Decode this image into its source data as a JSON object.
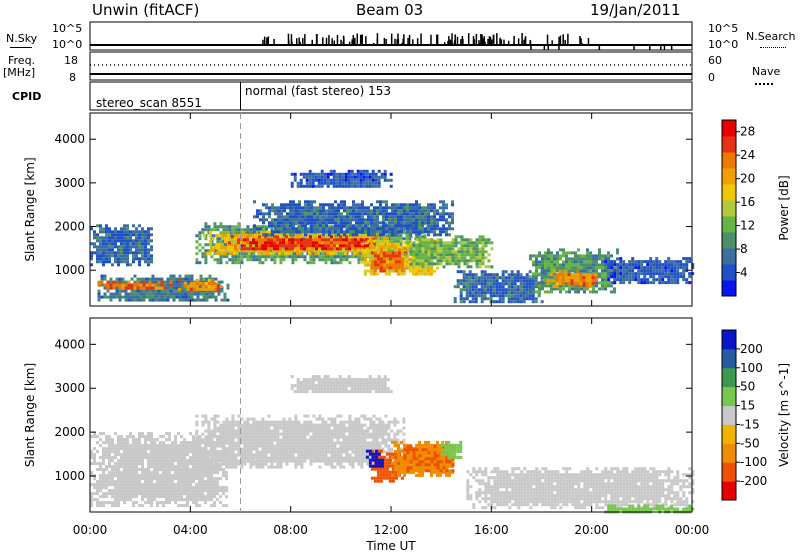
{
  "header": {
    "station": "Unwin (fitACF)",
    "beam": "Beam 03",
    "date": "19/Jan/2011"
  },
  "status_panels": {
    "nsky_label": "N.Sky",
    "nsearch_label": "N.Search",
    "n_ticks_left": [
      "10^5",
      "10^0"
    ],
    "n_ticks_right": [
      "10^5",
      "10^0"
    ],
    "freq_label": "Freq.",
    "freq_unit": "[MHz]",
    "freq_ticks": [
      "18",
      "8"
    ],
    "nave_label": "Nave",
    "nave_ticks": [
      "60",
      "0"
    ],
    "cpid_label": "CPID",
    "cpid_segments": [
      {
        "name": "stereo_scan 8551",
        "start_hour": 0
      },
      {
        "name": "normal (fast stereo) 153",
        "start_hour": 6
      }
    ]
  },
  "colors": {
    "power_scale": [
      "#0a14f0",
      "#1e50c8",
      "#3c6ea0",
      "#4a9068",
      "#64b446",
      "#b4c83c",
      "#f0c800",
      "#f0a000",
      "#f07800",
      "#e63214",
      "#e60000"
    ],
    "velocity_scale": [
      "#e60000",
      "#f05000",
      "#f08c00",
      "#f0b400",
      "#c8c8c8",
      "#78c850",
      "#3c9a50",
      "#285aa0",
      "#0a14c8"
    ]
  },
  "chart_data": [
    {
      "type": "heatmap",
      "panel": "power",
      "title": "",
      "xlabel": "Time UT",
      "ylabel": "Slant Range [km]",
      "xlim_hours": [
        0,
        24
      ],
      "ylim": [
        180,
        4600
      ],
      "x_ticks": [
        "00:00",
        "04:00",
        "08:00",
        "12:00",
        "16:00",
        "20:00",
        "00:00"
      ],
      "y_ticks": [
        "1000",
        "2000",
        "3000",
        "4000"
      ],
      "colorbar_label": "Power [dB]",
      "colorbar_ticks": [
        "4",
        "8",
        "12",
        "16",
        "20",
        "24",
        "28"
      ],
      "colorbar_range": [
        0,
        30
      ],
      "regions": [
        {
          "t0": 0.0,
          "t1": 2.5,
          "r0": 1150,
          "r1": 2050,
          "value": 6
        },
        {
          "t0": 0.3,
          "t1": 5.5,
          "r0": 300,
          "r1": 900,
          "value": 8
        },
        {
          "t0": 0.3,
          "t1": 3.2,
          "r0": 560,
          "r1": 760,
          "value": 24
        },
        {
          "t0": 3.5,
          "t1": 5.2,
          "r0": 560,
          "r1": 800,
          "value": 22
        },
        {
          "t0": 4.2,
          "t1": 13.5,
          "r0": 1200,
          "r1": 2100,
          "value": 10
        },
        {
          "t0": 4.5,
          "t1": 12.0,
          "r0": 1400,
          "r1": 1900,
          "value": 18
        },
        {
          "t0": 5.5,
          "t1": 11.5,
          "r0": 1500,
          "r1": 1800,
          "value": 26
        },
        {
          "t0": 6.5,
          "t1": 14.5,
          "r0": 1800,
          "r1": 2600,
          "value": 6
        },
        {
          "t0": 8.0,
          "t1": 12.0,
          "r0": 2900,
          "r1": 3300,
          "value": 5
        },
        {
          "t0": 10.8,
          "t1": 13.8,
          "r0": 900,
          "r1": 1700,
          "value": 18
        },
        {
          "t0": 11.2,
          "t1": 12.6,
          "r0": 1000,
          "r1": 1500,
          "value": 24
        },
        {
          "t0": 12.5,
          "t1": 16.0,
          "r0": 1100,
          "r1": 1800,
          "value": 12
        },
        {
          "t0": 14.5,
          "t1": 18.0,
          "r0": 300,
          "r1": 1000,
          "value": 6
        },
        {
          "t0": 17.5,
          "t1": 21.0,
          "r0": 500,
          "r1": 1500,
          "value": 10
        },
        {
          "t0": 18.2,
          "t1": 20.2,
          "r0": 650,
          "r1": 1000,
          "value": 22
        },
        {
          "t0": 20.5,
          "t1": 24.0,
          "r0": 700,
          "r1": 1300,
          "value": 5
        }
      ]
    },
    {
      "type": "heatmap",
      "panel": "velocity",
      "title": "",
      "xlabel": "Time UT",
      "ylabel": "Slant Range [km]",
      "xlim_hours": [
        0,
        24
      ],
      "ylim": [
        180,
        4600
      ],
      "x_ticks": [
        "00:00",
        "04:00",
        "08:00",
        "12:00",
        "16:00",
        "20:00",
        "00:00"
      ],
      "y_ticks": [
        "1000",
        "2000",
        "3000",
        "4000"
      ],
      "colorbar_label": "Velocity [m s^-1]",
      "colorbar_ticks": [
        "200",
        "100",
        "50",
        "15",
        "-15",
        "-50",
        "-100",
        "-200"
      ],
      "colorbar_range": [
        -250,
        250
      ],
      "regions": [
        {
          "t0": 0.0,
          "t1": 5.5,
          "r0": 300,
          "r1": 2000,
          "value": 0
        },
        {
          "t0": 4.2,
          "t1": 12.5,
          "r0": 1200,
          "r1": 2400,
          "value": 0
        },
        {
          "t0": 8.0,
          "t1": 12.0,
          "r0": 2900,
          "r1": 3300,
          "value": 0
        },
        {
          "t0": 11.2,
          "t1": 12.4,
          "r0": 900,
          "r1": 1600,
          "value": -180
        },
        {
          "t0": 12.0,
          "t1": 14.5,
          "r0": 1000,
          "r1": 1800,
          "value": -70
        },
        {
          "t0": 12.5,
          "t1": 14.5,
          "r0": 1100,
          "r1": 1700,
          "value": -100
        },
        {
          "t0": 14.0,
          "t1": 14.8,
          "r0": 1400,
          "r1": 1800,
          "value": 30
        },
        {
          "t0": 11.0,
          "t1": 11.6,
          "r0": 1200,
          "r1": 1600,
          "value": 220
        },
        {
          "t0": 15.0,
          "t1": 24.0,
          "r0": 300,
          "r1": 1200,
          "value": 0
        },
        {
          "t0": 20.5,
          "t1": 24.0,
          "r0": 200,
          "r1": 350,
          "value": 40
        }
      ]
    }
  ]
}
